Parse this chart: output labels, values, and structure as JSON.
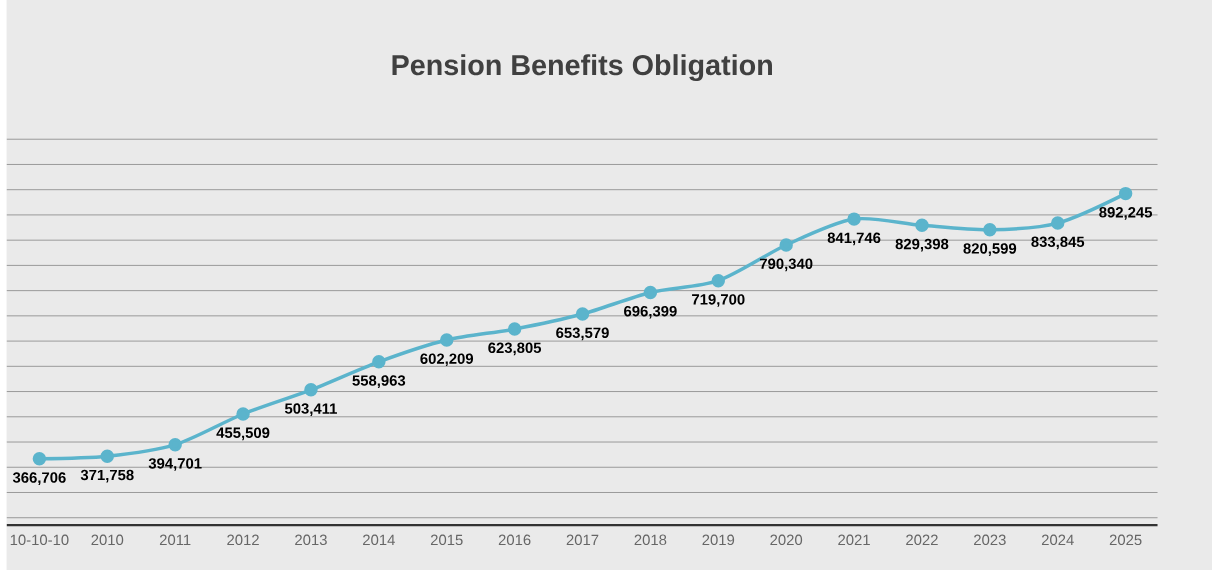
{
  "chart_data": {
    "type": "line",
    "title": "Pension Benefits Obligation",
    "categories": [
      "10-10-10",
      "2010",
      "2011",
      "2012",
      "2013",
      "2014",
      "2015",
      "2016",
      "2017",
      "2018",
      "2019",
      "2020",
      "2021",
      "2022",
      "2023",
      "2024",
      "2025"
    ],
    "values": [
      366706,
      371758,
      394701,
      455509,
      503411,
      558963,
      602209,
      623805,
      653579,
      696399,
      719700,
      790340,
      841746,
      829398,
      820599,
      833845,
      892245
    ],
    "value_labels": [
      "366,706",
      "371,758",
      "394,701",
      "455,509",
      "503,411",
      "558,963",
      "602,209",
      "623,805",
      "653,579",
      "696,399",
      "719,700",
      "790,340",
      "841,746",
      "829,398",
      "820,599",
      "833,845",
      "892,245"
    ],
    "color": "#5bb4cc",
    "marker": "circle",
    "line_style": "solid",
    "grid": "y",
    "tick_labels": "x"
  }
}
